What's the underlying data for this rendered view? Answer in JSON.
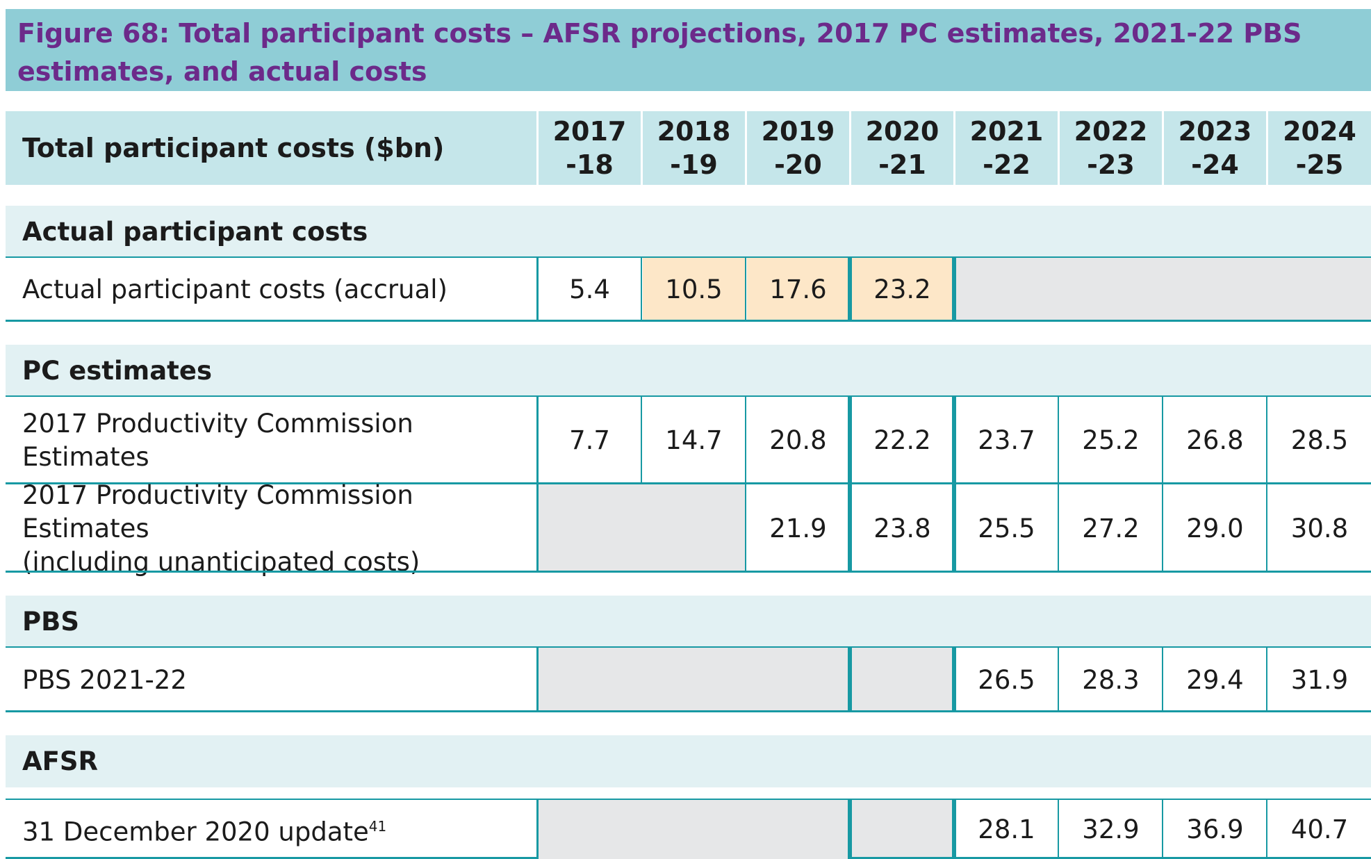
{
  "title": {
    "line1": "Figure 68: Total participant costs – AFSR projections, 2017 PC estimates, 2021-22 PBS",
    "line2": "estimates, and actual costs"
  },
  "header": {
    "label": "Total participant costs ($bn)",
    "years": [
      {
        "top": "2017",
        "bottom": "-18"
      },
      {
        "top": "2018",
        "bottom": "-19"
      },
      {
        "top": "2019",
        "bottom": "-20"
      },
      {
        "top": "2020",
        "bottom": "-21"
      },
      {
        "top": "2021",
        "bottom": "-22"
      },
      {
        "top": "2022",
        "bottom": "-23"
      },
      {
        "top": "2023",
        "bottom": "-24"
      },
      {
        "top": "2024",
        "bottom": "-25"
      }
    ]
  },
  "sections": {
    "actual": {
      "title": "Actual participant costs",
      "rows": [
        {
          "label_lines": [
            "Actual participant costs (accrual)"
          ],
          "values": [
            "5.4",
            "10.5",
            "17.6",
            "23.2",
            "",
            "",
            "",
            ""
          ]
        }
      ]
    },
    "pc": {
      "title": "PC estimates",
      "rows": [
        {
          "label_lines": [
            "2017 Productivity Commission",
            "Estimates"
          ],
          "values": [
            "7.7",
            "14.7",
            "20.8",
            "22.2",
            "23.7",
            "25.2",
            "26.8",
            "28.5"
          ]
        },
        {
          "label_lines": [
            "2017 Productivity Commission Estimates",
            "(including unanticipated costs)"
          ],
          "values": [
            "",
            "",
            "21.9",
            "23.8",
            "25.5",
            "27.2",
            "29.0",
            "30.8"
          ]
        }
      ]
    },
    "pbs": {
      "title": "PBS",
      "rows": [
        {
          "label_lines": [
            "PBS 2021-22"
          ],
          "values": [
            "",
            "",
            "",
            "",
            "26.5",
            "28.3",
            "29.4",
            "31.9"
          ]
        }
      ]
    },
    "afsr": {
      "title": "AFSR",
      "rows": [
        {
          "label_lines": [
            "31 December 2020 update"
          ],
          "footnote": "41",
          "values": [
            "",
            "",
            "",
            "",
            "28.1",
            "32.9",
            "36.9",
            "40.7"
          ]
        }
      ]
    }
  },
  "colors": {
    "title_band": "#8fcdd6",
    "title_text": "#6c2a8a",
    "header_fill": "#c5e6ea",
    "section_fill": "#e2f1f3",
    "border": "#1799a3",
    "empty_fill": "#e6e7e8",
    "highlight_fill": "#fde7c8"
  }
}
